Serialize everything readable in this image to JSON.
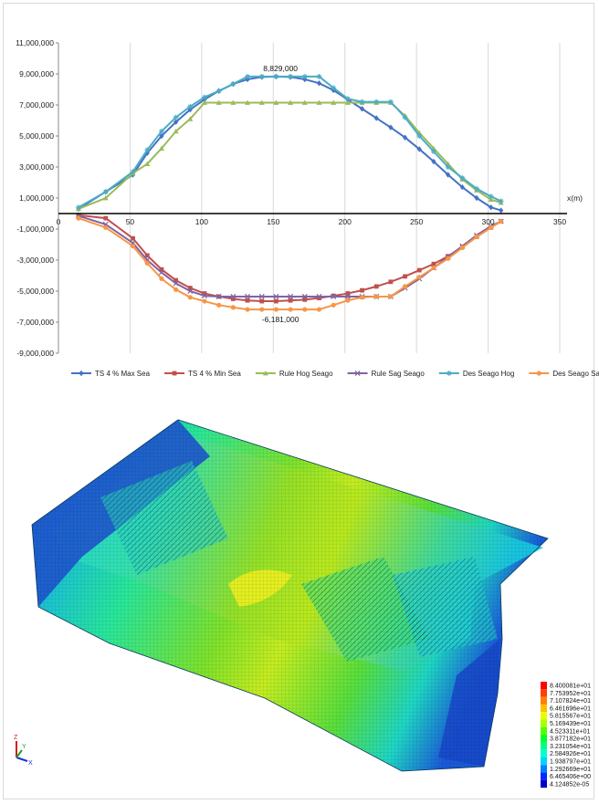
{
  "chart_data": {
    "type": "line",
    "xlabel": "x(m)",
    "ylabel": "",
    "xlim": [
      0,
      350
    ],
    "ylim": [
      -9000000,
      11000000
    ],
    "x_ticks": [
      "0",
      "50",
      "100",
      "150",
      "200",
      "250",
      "300",
      "350"
    ],
    "y_ticks": [
      "11,000,000",
      "9,000,000",
      "7,000,000",
      "5,000,000",
      "3,000,000",
      "1,000,000",
      "-1,000,000",
      "-3,000,000",
      "-5,000,000",
      "-7,000,000",
      "-9,000,000"
    ],
    "grid": "vertical",
    "legend_position": "bottom",
    "annotations": [
      {
        "text": "8,829,000",
        "x": 155,
        "y": 8829000
      },
      {
        "text": "-6,181,000",
        "x": 155,
        "y": -6181000
      }
    ],
    "series": [
      {
        "name": "TS 4 % Max Sea",
        "color": "#4472C4",
        "marker": "diamond",
        "x": [
          14,
          33,
          52,
          62,
          72,
          82,
          92,
          102,
          112,
          122,
          132,
          142,
          152,
          162,
          172,
          182,
          192,
          202,
          212,
          222,
          232,
          242,
          252,
          262,
          272,
          282,
          292,
          302,
          309
        ],
        "y": [
          300000,
          1400000,
          2500000,
          3900000,
          5000000,
          5900000,
          6700000,
          7350000,
          7900000,
          8350000,
          8650000,
          8800000,
          8829000,
          8800000,
          8650000,
          8400000,
          7950000,
          7350000,
          6750000,
          6150000,
          5550000,
          4900000,
          4150000,
          3350000,
          2500000,
          1700000,
          1000000,
          400000,
          200000
        ]
      },
      {
        "name": "TS 4 % Min Sea",
        "color": "#C0504D",
        "marker": "square",
        "x": [
          14,
          33,
          52,
          62,
          72,
          82,
          92,
          102,
          112,
          122,
          132,
          142,
          152,
          162,
          172,
          182,
          192,
          202,
          212,
          222,
          232,
          242,
          252,
          262,
          272,
          282,
          292,
          302,
          309
        ],
        "y": [
          -100000,
          -300000,
          -1600000,
          -2700000,
          -3600000,
          -4300000,
          -4800000,
          -5150000,
          -5350000,
          -5500000,
          -5600000,
          -5650000,
          -5650000,
          -5600000,
          -5550000,
          -5450000,
          -5300000,
          -5150000,
          -4950000,
          -4700000,
          -4400000,
          -4050000,
          -3650000,
          -3250000,
          -2750000,
          -2150000,
          -1500000,
          -900000,
          -500000
        ]
      },
      {
        "name": "Rule Hog Seago",
        "color": "#9BBB59",
        "marker": "triangle",
        "x": [
          14,
          33,
          52,
          62,
          72,
          82,
          92,
          102,
          112,
          122,
          132,
          142,
          152,
          162,
          172,
          182,
          192,
          202,
          212,
          222,
          232,
          242,
          252,
          262,
          272,
          282,
          292,
          302,
          309
        ],
        "y": [
          300000,
          1000000,
          2600000,
          3200000,
          4200000,
          5300000,
          6100000,
          7150000,
          7150000,
          7150000,
          7150000,
          7150000,
          7150000,
          7150000,
          7150000,
          7150000,
          7150000,
          7150000,
          7150000,
          7150000,
          7150000,
          6300000,
          5200000,
          4200000,
          3200000,
          2200000,
          1500000,
          900000,
          700000
        ]
      },
      {
        "name": "Rule Sag Seago",
        "color": "#8064A2",
        "marker": "x",
        "x": [
          14,
          33,
          52,
          62,
          72,
          82,
          92,
          102,
          112,
          122,
          132,
          142,
          152,
          162,
          172,
          182,
          192,
          202,
          212,
          222,
          232,
          242,
          252,
          262,
          272,
          282,
          292,
          302,
          309
        ],
        "y": [
          -150000,
          -700000,
          -1900000,
          -3000000,
          -3800000,
          -4500000,
          -5000000,
          -5300000,
          -5350000,
          -5350000,
          -5350000,
          -5350000,
          -5350000,
          -5350000,
          -5350000,
          -5350000,
          -5350000,
          -5350000,
          -5350000,
          -5350000,
          -5350000,
          -4800000,
          -4200000,
          -3500000,
          -2800000,
          -2100000,
          -1400000,
          -800000,
          -500000
        ]
      },
      {
        "name": "Des Seago Hog",
        "color": "#4BACC6",
        "marker": "star",
        "x": [
          14,
          33,
          52,
          62,
          72,
          82,
          92,
          102,
          112,
          122,
          132,
          142,
          152,
          162,
          172,
          182,
          192,
          202,
          212,
          222,
          232,
          242,
          252,
          262,
          272,
          282,
          292,
          302,
          309
        ],
        "y": [
          400000,
          1400000,
          2700000,
          4100000,
          5300000,
          6200000,
          6900000,
          7500000,
          7900000,
          8350000,
          8829000,
          8829000,
          8829000,
          8829000,
          8829000,
          8829000,
          8100000,
          7400000,
          7200000,
          7200000,
          7200000,
          6200000,
          5000000,
          4000000,
          3000000,
          2300000,
          1600000,
          1100000,
          800000
        ]
      },
      {
        "name": "Des Seago Sag",
        "color": "#F79646",
        "marker": "circle",
        "x": [
          14,
          33,
          52,
          62,
          72,
          82,
          92,
          102,
          112,
          122,
          132,
          142,
          152,
          162,
          172,
          182,
          192,
          202,
          212,
          222,
          232,
          242,
          252,
          262,
          272,
          282,
          292,
          302,
          309
        ],
        "y": [
          -300000,
          -900000,
          -2100000,
          -3200000,
          -4200000,
          -4900000,
          -5400000,
          -5650000,
          -5900000,
          -6050000,
          -6181000,
          -6181000,
          -6181000,
          -6181000,
          -6181000,
          -6181000,
          -5900000,
          -5600000,
          -5400000,
          -5350000,
          -5350000,
          -4700000,
          -4100000,
          -3500000,
          -2900000,
          -2200000,
          -1500000,
          -900000,
          -500000
        ]
      }
    ]
  },
  "fea_model": {
    "colorbar_labels": [
      "8.400081e+01",
      "7.753952e+01",
      "7.107824e+01",
      "6.461696e+01",
      "5.815567e+01",
      "5.169439e+01",
      "4.523311e+01",
      "3.877182e+01",
      "3.231054e+01",
      "2.584926e+01",
      "1.938797e+01",
      "1.292669e+01",
      "6.465406e+00",
      "4.124852e-05"
    ],
    "colorbar_colors": [
      "#ff0000",
      "#ff4000",
      "#ff8000",
      "#ffbf00",
      "#e6ff00",
      "#aaff00",
      "#55ff00",
      "#00ff2a",
      "#00ff80",
      "#00ffd5",
      "#00d5ff",
      "#0080ff",
      "#002aff",
      "#0000c8"
    ],
    "axis_labels": [
      "Z",
      "Y",
      "X"
    ]
  }
}
